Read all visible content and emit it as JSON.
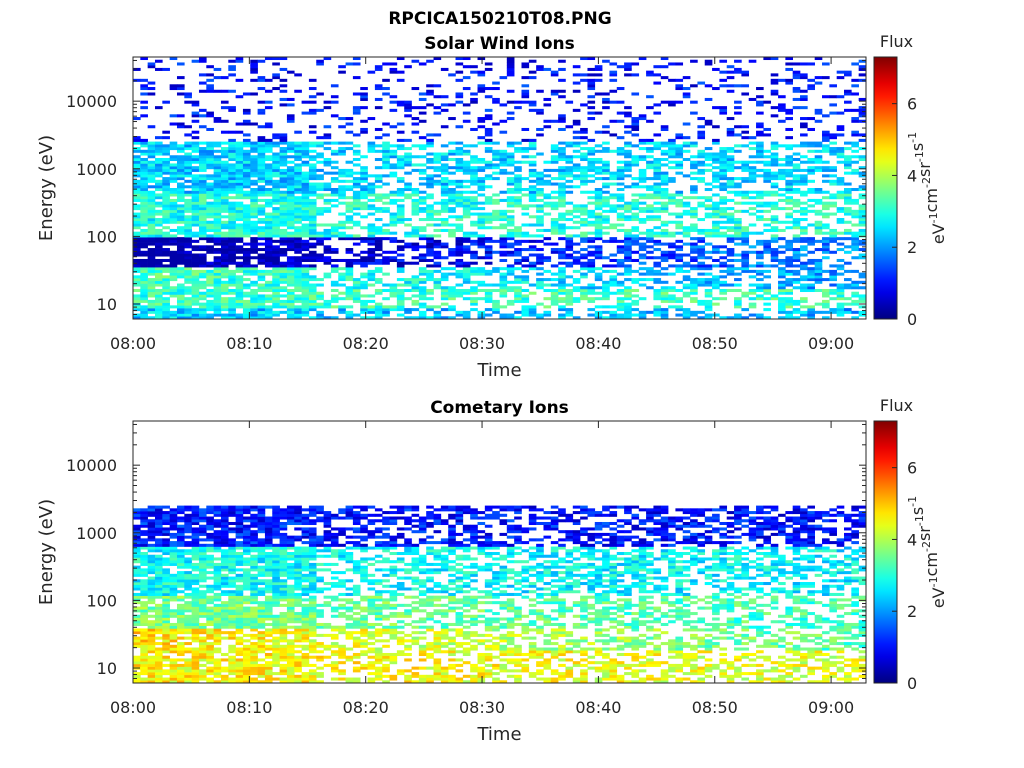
{
  "figure_title": "RPCICA150210T08.PNG",
  "colorbar": {
    "title": "Flux",
    "label_parts": [
      "eV",
      "-1",
      "cm",
      "-2",
      "sr",
      "-1",
      "s",
      "-1"
    ],
    "range": [
      0,
      7.3
    ],
    "ticks": [
      0,
      2,
      4,
      6
    ],
    "tick_labels": [
      "0",
      "2",
      "4",
      "6"
    ],
    "colormap": "jet"
  },
  "chart_data": [
    {
      "type": "heatmap",
      "title": "Solar Wind Ions",
      "xlabel": "Time",
      "ylabel": "Energy (eV)",
      "x_range": [
        "08:00",
        "09:03"
      ],
      "x_ticks": [
        "08:00",
        "08:10",
        "08:20",
        "08:30",
        "08:40",
        "08:50",
        "09:00"
      ],
      "y_scale": "log",
      "y_range": [
        6,
        45000
      ],
      "y_ticks": [
        10,
        100,
        1000,
        10000
      ],
      "y_tick_labels": [
        "10",
        "100",
        "1000",
        "10000"
      ],
      "flux_profile": [
        {
          "energy": [
            6,
            9
          ],
          "early": 2.4,
          "late": 2.2
        },
        {
          "energy": [
            9,
            17
          ],
          "early": 3.1,
          "late": 3.2
        },
        {
          "energy": [
            17,
            35
          ],
          "early": 3.3,
          "late": 2.0
        },
        {
          "energy": [
            35,
            100
          ],
          "early": 0.0,
          "late": 2.0
        },
        {
          "energy": [
            100,
            450
          ],
          "early": 2.9,
          "late": 3.0
        },
        {
          "energy": [
            450,
            2500
          ],
          "early": 2.4,
          "late": 2.5
        },
        {
          "energy": [
            2500,
            45000
          ],
          "early": 1.0,
          "late": 1.0
        }
      ]
    },
    {
      "type": "heatmap",
      "title": "Cometary Ions",
      "xlabel": "Time",
      "ylabel": "Energy (eV)",
      "x_range": [
        "08:00",
        "09:03"
      ],
      "x_ticks": [
        "08:00",
        "08:10",
        "08:20",
        "08:30",
        "08:40",
        "08:50",
        "09:00"
      ],
      "y_scale": "log",
      "y_range": [
        6,
        45000
      ],
      "y_ticks": [
        10,
        100,
        1000,
        10000
      ],
      "y_tick_labels": [
        "10",
        "100",
        "1000",
        "10000"
      ],
      "flux_profile": [
        {
          "energy": [
            6,
            18
          ],
          "early": 4.6,
          "late": 4.3
        },
        {
          "energy": [
            18,
            40
          ],
          "early": 4.8,
          "late": 3.3
        },
        {
          "energy": [
            40,
            120
          ],
          "early": 3.6,
          "late": 3.2
        },
        {
          "energy": [
            120,
            600
          ],
          "early": 2.8,
          "late": 2.7
        },
        {
          "energy": [
            600,
            2500
          ],
          "early": 1.1,
          "late": 1.0
        }
      ]
    }
  ]
}
